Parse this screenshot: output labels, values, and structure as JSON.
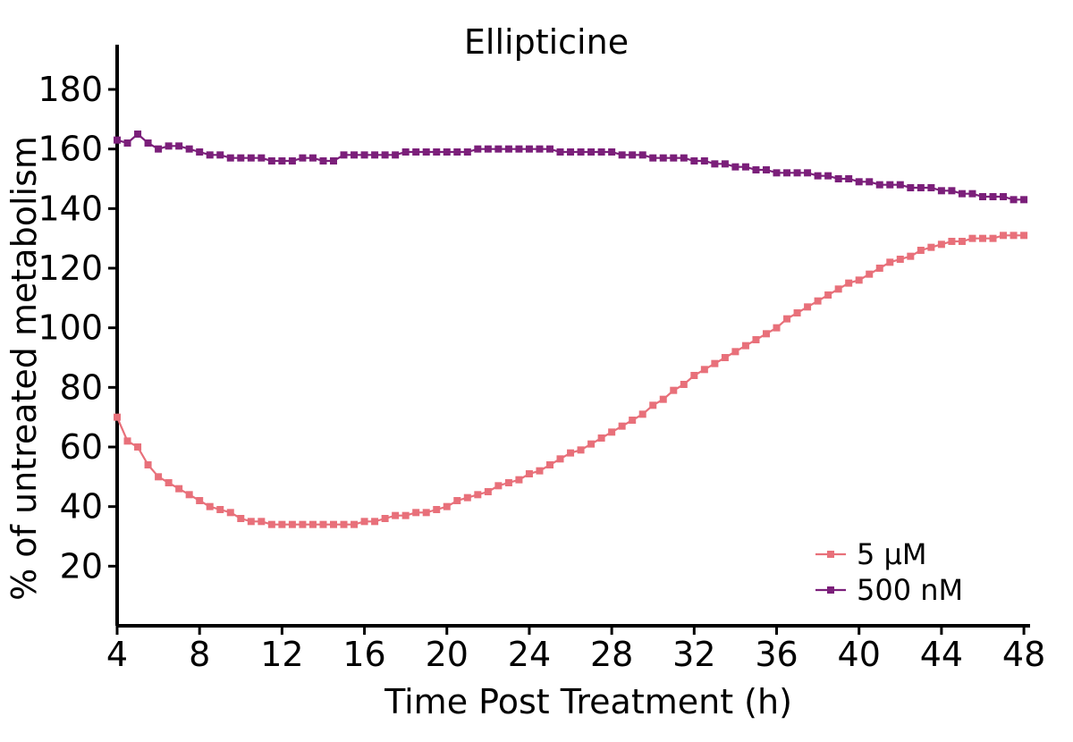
{
  "chart_data": {
    "type": "line",
    "title": "Ellipticine",
    "xlabel": "Time Post Treatment (h)",
    "ylabel": "% of untreated metabolism",
    "xlim": [
      4,
      48.3
    ],
    "ylim": [
      0,
      195
    ],
    "xticks": [
      4,
      8,
      12,
      16,
      20,
      24,
      28,
      32,
      36,
      40,
      44,
      48
    ],
    "yticks": [
      20,
      40,
      60,
      80,
      100,
      120,
      140,
      160,
      180
    ],
    "legend_position": "bottom-right",
    "marker": "square",
    "grid": false,
    "x": [
      4.0,
      4.5,
      5.0,
      5.5,
      6.0,
      6.5,
      7.0,
      7.5,
      8.0,
      8.5,
      9.0,
      9.5,
      10.0,
      10.5,
      11.0,
      11.5,
      12.0,
      12.5,
      13.0,
      13.5,
      14.0,
      14.5,
      15.0,
      15.5,
      16.0,
      16.5,
      17.0,
      17.5,
      18.0,
      18.5,
      19.0,
      19.5,
      20.0,
      20.5,
      21.0,
      21.5,
      22.0,
      22.5,
      23.0,
      23.5,
      24.0,
      24.5,
      25.0,
      25.5,
      26.0,
      26.5,
      27.0,
      27.5,
      28.0,
      28.5,
      29.0,
      29.5,
      30.0,
      30.5,
      31.0,
      31.5,
      32.0,
      32.5,
      33.0,
      33.5,
      34.0,
      34.5,
      35.0,
      35.5,
      36.0,
      36.5,
      37.0,
      37.5,
      38.0,
      38.5,
      39.0,
      39.5,
      40.0,
      40.5,
      41.0,
      41.5,
      42.0,
      42.5,
      43.0,
      43.5,
      44.0,
      44.5,
      45.0,
      45.5,
      46.0,
      46.5,
      47.0,
      47.5,
      48.0
    ],
    "series": [
      {
        "name": "5 µM",
        "color": "#e8707a",
        "values": [
          70,
          62,
          60,
          54,
          50,
          48,
          46,
          44,
          42,
          40,
          39,
          38,
          36,
          35,
          35,
          34,
          34,
          34,
          34,
          34,
          34,
          34,
          34,
          34,
          35,
          35,
          36,
          37,
          37,
          38,
          38,
          39,
          40,
          42,
          43,
          44,
          45,
          47,
          48,
          49,
          51,
          52,
          54,
          56,
          58,
          59,
          61,
          63,
          65,
          67,
          69,
          71,
          74,
          76,
          79,
          81,
          84,
          86,
          88,
          90,
          92,
          94,
          96,
          98,
          100,
          103,
          105,
          107,
          109,
          111,
          113,
          115,
          116,
          118,
          120,
          122,
          123,
          124,
          126,
          127,
          128,
          129,
          129,
          130,
          130,
          130,
          131,
          131,
          131
        ]
      },
      {
        "name": "500 nM",
        "color": "#7b1f7a",
        "values": [
          163,
          162,
          165,
          162,
          160,
          161,
          161,
          160,
          159,
          158,
          158,
          157,
          157,
          157,
          157,
          156,
          156,
          156,
          157,
          157,
          156,
          156,
          158,
          158,
          158,
          158,
          158,
          158,
          159,
          159,
          159,
          159,
          159,
          159,
          159,
          160,
          160,
          160,
          160,
          160,
          160,
          160,
          160,
          159,
          159,
          159,
          159,
          159,
          159,
          158,
          158,
          158,
          157,
          157,
          157,
          157,
          156,
          156,
          155,
          155,
          154,
          154,
          153,
          153,
          152,
          152,
          152,
          152,
          151,
          151,
          150,
          150,
          149,
          149,
          148,
          148,
          148,
          147,
          147,
          147,
          146,
          146,
          145,
          145,
          144,
          144,
          144,
          143,
          143
        ]
      }
    ]
  }
}
